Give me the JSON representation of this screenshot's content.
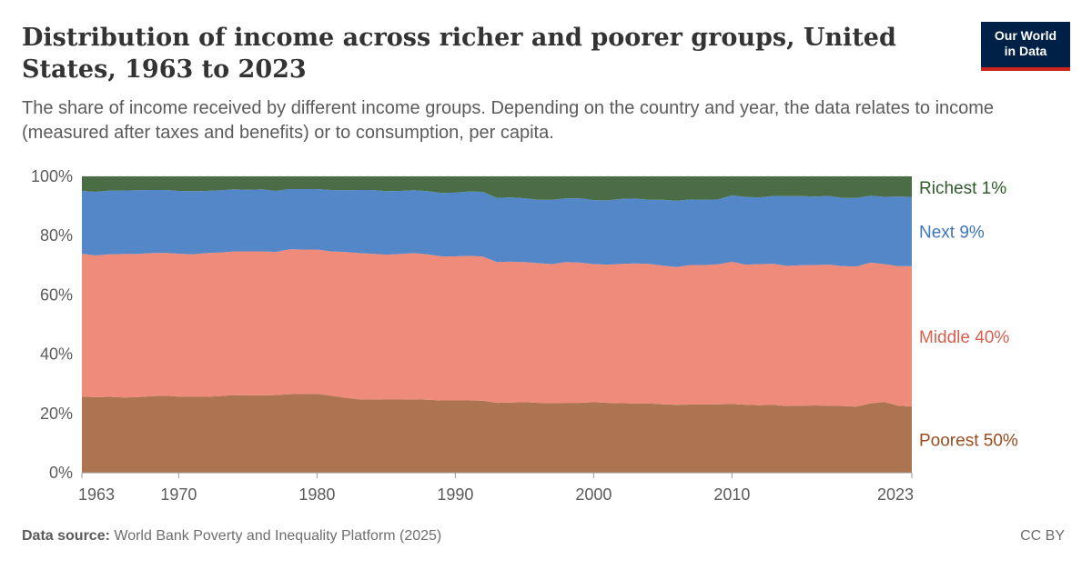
{
  "header": {
    "title": "Distribution of income across richer and poorer groups, United States, 1963 to 2023",
    "subtitle": "The share of income received by different income groups. Depending on the country and year, the data relates to income (measured after taxes and benefits) or to consumption, per capita."
  },
  "logo": {
    "line1": "Our World",
    "line2": "in Data",
    "background": "#002147",
    "accent": "#ce261e"
  },
  "footer": {
    "source_label": "Data source:",
    "source_text": "World Bank Poverty and Inequality Platform (2025)",
    "license": "CC BY"
  },
  "chart_data": {
    "type": "area",
    "stacked": true,
    "x": [
      1963,
      1964,
      1965,
      1966,
      1967,
      1968,
      1969,
      1970,
      1971,
      1972,
      1973,
      1974,
      1975,
      1976,
      1977,
      1978,
      1979,
      1980,
      1981,
      1982,
      1983,
      1984,
      1985,
      1986,
      1987,
      1988,
      1989,
      1990,
      1991,
      1992,
      1993,
      1994,
      1995,
      1996,
      1997,
      1998,
      1999,
      2000,
      2001,
      2002,
      2003,
      2004,
      2005,
      2006,
      2007,
      2008,
      2009,
      2010,
      2011,
      2012,
      2013,
      2014,
      2015,
      2016,
      2017,
      2018,
      2019,
      2020,
      2021,
      2022,
      2023
    ],
    "xlim": [
      1963,
      2023
    ],
    "ylim": [
      0,
      100
    ],
    "y_ticks": [
      0,
      20,
      40,
      60,
      80,
      100
    ],
    "y_tick_suffix": "%",
    "x_ticks": [
      1963,
      1970,
      1980,
      1990,
      2000,
      2010,
      2023
    ],
    "grid": true,
    "legend": "right-of-plot",
    "series": [
      {
        "name": "Poorest 50%",
        "color": "#ad7451",
        "label_color": "#9a4c1f",
        "values": [
          25.7,
          25.5,
          25.6,
          25.4,
          25.5,
          25.8,
          26.0,
          25.7,
          25.6,
          25.6,
          25.9,
          26.2,
          26.1,
          26.1,
          26.2,
          26.5,
          26.6,
          26.6,
          26.0,
          25.3,
          24.8,
          24.8,
          24.7,
          24.7,
          24.8,
          24.6,
          24.4,
          24.4,
          24.4,
          24.3,
          23.6,
          23.7,
          23.8,
          23.6,
          23.5,
          23.6,
          23.6,
          23.8,
          23.6,
          23.5,
          23.3,
          23.4,
          23.1,
          22.9,
          23.0,
          23.1,
          23.1,
          23.2,
          22.9,
          22.8,
          22.9,
          22.5,
          22.6,
          22.7,
          22.6,
          22.5,
          22.3,
          23.4,
          23.9,
          22.6,
          22.4
        ]
      },
      {
        "name": "Middle 40%",
        "color": "#ee8b7b",
        "label_color": "#d85f4e",
        "values": [
          48.2,
          47.8,
          48.1,
          48.4,
          48.3,
          48.3,
          48.2,
          48.2,
          48.1,
          48.5,
          48.4,
          48.5,
          48.6,
          48.6,
          48.3,
          48.9,
          48.7,
          48.7,
          48.7,
          49.2,
          49.3,
          49.1,
          48.9,
          49.1,
          49.3,
          49.1,
          48.6,
          48.6,
          48.8,
          48.6,
          47.5,
          47.5,
          47.3,
          47.1,
          46.9,
          47.5,
          47.3,
          46.6,
          46.6,
          47.0,
          47.3,
          47.1,
          46.8,
          46.5,
          47.1,
          47.0,
          47.2,
          48.0,
          47.3,
          47.6,
          47.6,
          47.3,
          47.4,
          47.4,
          47.6,
          47.2,
          47.3,
          47.5,
          46.5,
          47.1,
          47.3
        ]
      },
      {
        "name": "Next 9%",
        "color": "#5387c8",
        "label_color": "#3f75bf",
        "values": [
          21.2,
          21.5,
          21.5,
          21.4,
          21.5,
          21.3,
          21.2,
          21.2,
          21.3,
          21.0,
          21.0,
          20.9,
          20.8,
          20.9,
          20.6,
          20.3,
          20.4,
          20.4,
          20.7,
          20.8,
          21.3,
          21.5,
          21.4,
          21.3,
          21.2,
          21.3,
          21.4,
          21.5,
          21.7,
          21.9,
          21.6,
          21.7,
          21.5,
          21.4,
          21.7,
          21.5,
          21.7,
          21.6,
          21.7,
          21.9,
          21.9,
          21.6,
          22.2,
          22.4,
          22.1,
          22.0,
          21.9,
          22.4,
          22.8,
          22.5,
          22.9,
          23.5,
          23.3,
          23.1,
          23.2,
          23.0,
          23.1,
          22.6,
          22.7,
          23.5,
          23.4
        ]
      },
      {
        "name": "Richest 1%",
        "color": "#4a6d45",
        "label_color": "#2f5a2a",
        "values": [
          4.9,
          5.2,
          4.8,
          4.8,
          4.7,
          4.6,
          4.6,
          4.9,
          5.0,
          4.9,
          4.7,
          4.4,
          4.5,
          4.4,
          4.9,
          4.3,
          4.3,
          4.3,
          4.6,
          4.7,
          4.6,
          4.6,
          5.0,
          4.9,
          4.7,
          5.0,
          5.6,
          5.5,
          5.1,
          5.2,
          7.3,
          7.1,
          7.4,
          7.9,
          7.9,
          7.4,
          7.4,
          8.0,
          8.1,
          7.6,
          7.5,
          7.9,
          7.9,
          8.2,
          7.8,
          7.9,
          7.8,
          6.4,
          7.0,
          7.1,
          6.6,
          6.7,
          6.7,
          6.8,
          6.6,
          7.3,
          7.3,
          6.5,
          6.9,
          6.8,
          6.9
        ]
      }
    ]
  }
}
